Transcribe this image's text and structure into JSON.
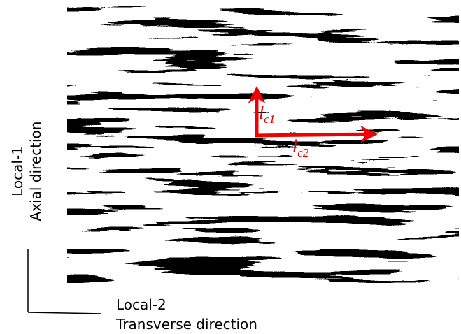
{
  "axes": {
    "vertical": {
      "name": "Local-1",
      "direction": "Axial direction"
    },
    "horizontal": {
      "name": "Local-2",
      "direction": "Transverse direction"
    }
  },
  "arrows": [
    {
      "symbol": "l",
      "subscript": "c1"
    },
    {
      "symbol": "l",
      "subscript": "c2"
    }
  ]
}
